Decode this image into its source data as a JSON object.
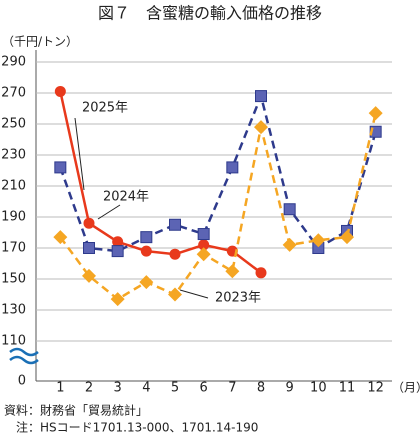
{
  "chart_data": {
    "type": "line",
    "title": "図７　含蜜糖の輸入価格の推移",
    "y_axis_label": "（千円/トン）",
    "x_axis_label": "（月）",
    "y_origin_label": "0",
    "categories": [
      "1",
      "2",
      "3",
      "4",
      "5",
      "6",
      "7",
      "8",
      "9",
      "10",
      "11",
      "12"
    ],
    "series": [
      {
        "name": "2025年",
        "color": "#e8391c",
        "marker": "circle",
        "dashed": false,
        "values": [
          271,
          186,
          174,
          168,
          166,
          172,
          168,
          154,
          null,
          null,
          null,
          null
        ]
      },
      {
        "name": "2024年",
        "color": "#2e3a8c",
        "marker": "square",
        "dashed": true,
        "values": [
          222,
          170,
          168,
          177,
          185,
          179,
          222,
          268,
          195,
          170,
          181,
          245
        ]
      },
      {
        "name": "2023年",
        "color": "#f5a623",
        "marker": "diamond",
        "dashed": true,
        "values": [
          177,
          152,
          137,
          148,
          140,
          166,
          155,
          248,
          172,
          175,
          177,
          257
        ]
      }
    ],
    "ylim": [
      110,
      290
    ],
    "yticks": [
      110,
      130,
      150,
      170,
      190,
      210,
      230,
      250,
      270,
      290
    ],
    "grid": true,
    "source": "資料：財務省「貿易統計」",
    "note": "注：HSコード1701.13-000、1701.14-190"
  }
}
